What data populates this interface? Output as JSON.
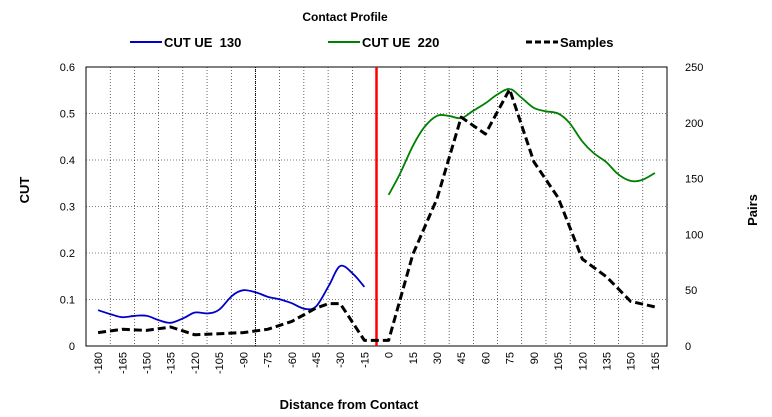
{
  "chart_data": {
    "type": "line",
    "title": "Contact Profile",
    "xlabel": "Distance from Contact",
    "ylabel_left": "CUT",
    "ylabel_right": "Pairs",
    "x_ticks": [
      -180,
      -165,
      -150,
      -135,
      -120,
      -105,
      -90,
      -75,
      -60,
      -45,
      -30,
      -15,
      0,
      15,
      30,
      45,
      60,
      75,
      90,
      105,
      120,
      135,
      150,
      165
    ],
    "y_left": {
      "min": 0,
      "max": 0.6,
      "ticks": [
        "0",
        "0.1",
        "0.2",
        "0.3",
        "0.4",
        "0.5",
        "0.6"
      ]
    },
    "y_right": {
      "min": 0,
      "max": 250,
      "ticks": [
        "0",
        "50",
        "100",
        "150",
        "200",
        "250"
      ]
    },
    "grid": true,
    "legend_position": "top",
    "contact_line_x": -7.5,
    "contact_line_color": "#ff0000",
    "dotted_line_x": -82.5,
    "series": [
      {
        "name": "CUT UE  130",
        "axis": "left",
        "color": "#0000cc",
        "style": "solid",
        "points": [
          [
            -180,
            0.077
          ],
          [
            -172,
            0.068
          ],
          [
            -165,
            0.062
          ],
          [
            -157,
            0.065
          ],
          [
            -150,
            0.065
          ],
          [
            -142,
            0.055
          ],
          [
            -135,
            0.05
          ],
          [
            -127,
            0.06
          ],
          [
            -120,
            0.072
          ],
          [
            -112,
            0.07
          ],
          [
            -105,
            0.078
          ],
          [
            -97,
            0.108
          ],
          [
            -90,
            0.12
          ],
          [
            -82,
            0.115
          ],
          [
            -75,
            0.106
          ],
          [
            -67,
            0.1
          ],
          [
            -60,
            0.092
          ],
          [
            -52,
            0.08
          ],
          [
            -45,
            0.085
          ],
          [
            -37,
            0.13
          ],
          [
            -30,
            0.172
          ],
          [
            -22,
            0.155
          ],
          [
            -15,
            0.127
          ]
        ]
      },
      {
        "name": "CUT UE  220",
        "axis": "left",
        "color": "#008000",
        "style": "solid",
        "points": [
          [
            0,
            0.325
          ],
          [
            7,
            0.37
          ],
          [
            15,
            0.43
          ],
          [
            22,
            0.47
          ],
          [
            30,
            0.495
          ],
          [
            37,
            0.495
          ],
          [
            45,
            0.49
          ],
          [
            52,
            0.505
          ],
          [
            60,
            0.522
          ],
          [
            67,
            0.54
          ],
          [
            75,
            0.553
          ],
          [
            82,
            0.535
          ],
          [
            90,
            0.512
          ],
          [
            97,
            0.505
          ],
          [
            105,
            0.5
          ],
          [
            112,
            0.48
          ],
          [
            120,
            0.44
          ],
          [
            127,
            0.415
          ],
          [
            135,
            0.395
          ],
          [
            142,
            0.37
          ],
          [
            150,
            0.355
          ],
          [
            157,
            0.357
          ],
          [
            165,
            0.372
          ]
        ]
      },
      {
        "name": "Samples",
        "axis": "right",
        "color": "#000000",
        "style": "dashed",
        "points": [
          [
            -180,
            12
          ],
          [
            -165,
            15
          ],
          [
            -150,
            14
          ],
          [
            -135,
            17
          ],
          [
            -120,
            10
          ],
          [
            -105,
            11
          ],
          [
            -90,
            12
          ],
          [
            -75,
            15
          ],
          [
            -60,
            22
          ],
          [
            -45,
            34
          ],
          [
            -37,
            38
          ],
          [
            -30,
            38
          ],
          [
            -15,
            5
          ],
          [
            -7,
            5
          ],
          [
            0,
            5
          ],
          [
            15,
            82
          ],
          [
            30,
            132
          ],
          [
            45,
            205
          ],
          [
            60,
            190
          ],
          [
            75,
            230
          ],
          [
            90,
            165
          ],
          [
            105,
            133
          ],
          [
            120,
            78
          ],
          [
            135,
            62
          ],
          [
            150,
            40
          ],
          [
            165,
            35
          ]
        ]
      }
    ]
  }
}
